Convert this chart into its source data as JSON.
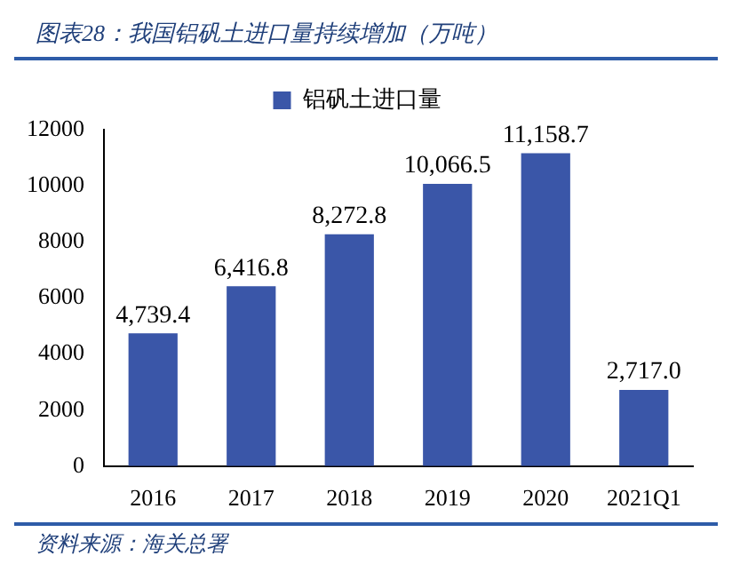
{
  "chart_data": {
    "type": "bar",
    "title": "图表28：我国铝矾土进口量持续增加（万吨）",
    "categories": [
      "2016",
      "2017",
      "2018",
      "2019",
      "2020",
      "2021Q1"
    ],
    "series": [
      {
        "name": "铝矾土进口量",
        "color": "#3a56a8",
        "values": [
          4739.4,
          6416.8,
          8272.8,
          10066.5,
          11158.7,
          2717.0
        ],
        "value_labels": [
          "4,739.4",
          "6,416.8",
          "8,272.8",
          "10,066.5",
          "11,158.7",
          "2,717.0"
        ]
      }
    ],
    "ylim": [
      0,
      12000
    ],
    "yticks": [
      0,
      2000,
      4000,
      6000,
      8000,
      10000,
      12000
    ],
    "grid": false,
    "legend": "top",
    "annotations": [
      "资料来源：海关总署"
    ]
  }
}
